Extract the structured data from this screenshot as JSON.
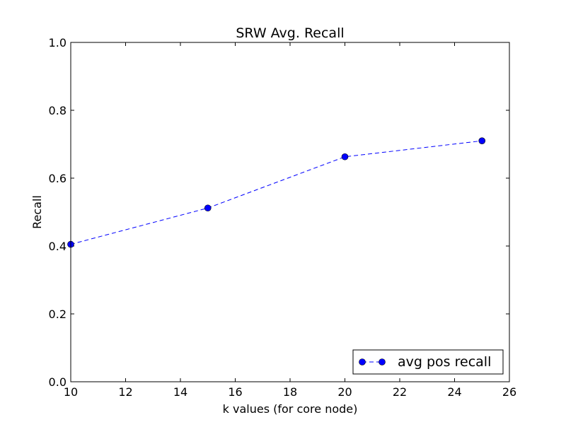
{
  "chart_data": {
    "type": "line",
    "title": "SRW Avg. Recall",
    "xlabel": "k values (for core node)",
    "ylabel": "Recall",
    "xlim": [
      10,
      26
    ],
    "ylim": [
      0.0,
      1.0
    ],
    "xticks": [
      10,
      12,
      14,
      16,
      18,
      20,
      22,
      24,
      26
    ],
    "yticks": [
      0.0,
      0.2,
      0.4,
      0.6,
      0.8,
      1.0
    ],
    "xtick_labels": [
      "10",
      "12",
      "14",
      "16",
      "18",
      "20",
      "22",
      "24",
      "26"
    ],
    "ytick_labels": [
      "0.0",
      "0.2",
      "0.4",
      "0.6",
      "0.8",
      "1.0"
    ],
    "grid": false,
    "legend_position": "bottom-right",
    "series": [
      {
        "name": "avg pos recall",
        "color": "#0000ff",
        "line_style": "dashed",
        "marker": "circle",
        "x": [
          10,
          15,
          20,
          25
        ],
        "y": [
          0.405,
          0.512,
          0.663,
          0.71
        ]
      }
    ]
  }
}
